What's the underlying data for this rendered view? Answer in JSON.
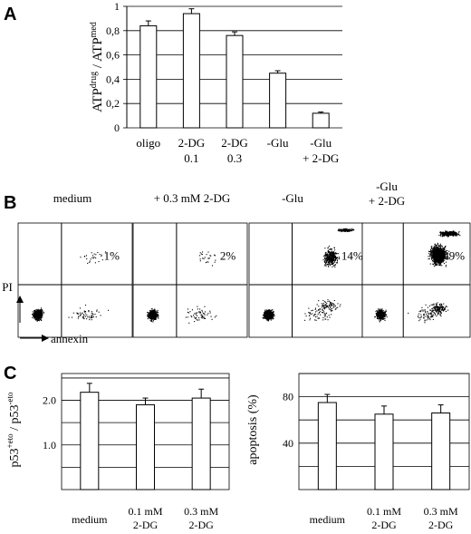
{
  "panels": {
    "A": {
      "letter": "A"
    },
    "B": {
      "letter": "B"
    },
    "C": {
      "letter": "C"
    }
  },
  "chart_data": [
    {
      "id": "panelA",
      "type": "bar",
      "categories": [
        [
          "oligo"
        ],
        [
          "2-DG",
          "0.1"
        ],
        [
          "2-DG",
          "0.3"
        ],
        [
          "-Glu"
        ],
        [
          "-Glu",
          "+ 2-DG"
        ]
      ],
      "values": [
        0.84,
        0.94,
        0.76,
        0.45,
        0.12
      ],
      "errors": [
        0.04,
        0.04,
        0.03,
        0.02,
        0.01
      ],
      "ylabel": {
        "base1": "ATP",
        "sup1": "drug",
        "mid": " / ATP",
        "sup2": "med"
      },
      "ylim": [
        0,
        1
      ],
      "yticks": [
        "0",
        "0,2",
        "0,4",
        "0,6",
        "0,8",
        "1"
      ],
      "grid": true
    },
    {
      "id": "panelC1",
      "type": "bar",
      "categories": [
        [
          "medium"
        ],
        [
          "0.1 mM",
          "2-DG"
        ],
        [
          "0.3 mM",
          "2-DG"
        ]
      ],
      "values": [
        2.18,
        1.9,
        2.05
      ],
      "errors": [
        0.2,
        0.15,
        0.2
      ],
      "ylabel": {
        "base1": "p53",
        "sup1": "+eto",
        "mid": " / p53",
        "sup2": "-eto"
      },
      "ylim": [
        0,
        2.6
      ],
      "yticks": [
        {
          "v": 1.0,
          "t": "1.0"
        },
        {
          "v": 2.0,
          "t": "2.0"
        }
      ],
      "gridlines": [
        0.5,
        1.0,
        1.5,
        2.0,
        2.5
      ],
      "grid": true
    },
    {
      "id": "panelC2",
      "type": "bar",
      "categories": [
        [
          "medium"
        ],
        [
          "0.1 mM",
          "2-DG"
        ],
        [
          "0.3 mM",
          "2-DG"
        ]
      ],
      "values": [
        75,
        65,
        66
      ],
      "errors": [
        7,
        7,
        7
      ],
      "ylabel": {
        "text": "apoptosis (%)"
      },
      "ylim": [
        0,
        100
      ],
      "yticks": [
        {
          "v": 40,
          "t": "40"
        },
        {
          "v": 80,
          "t": "80"
        }
      ],
      "gridlines": [
        20,
        40,
        60,
        80,
        100
      ],
      "grid": true
    },
    {
      "id": "panelB",
      "type": "scatter",
      "plots": [
        {
          "title": [
            "medium"
          ],
          "percent": "1%",
          "cluster": "low"
        },
        {
          "title": [
            "+ 0.3 mM 2-DG"
          ],
          "percent": "2%",
          "cluster": "low"
        },
        {
          "title": [
            "-Glu"
          ],
          "percent": "14%",
          "cluster": "mid"
        },
        {
          "title": [
            "-Glu",
            "+ 2-DG"
          ],
          "percent": "49%",
          "cluster": "high"
        }
      ],
      "axis_y": "PI",
      "axis_x": "annexin"
    }
  ]
}
